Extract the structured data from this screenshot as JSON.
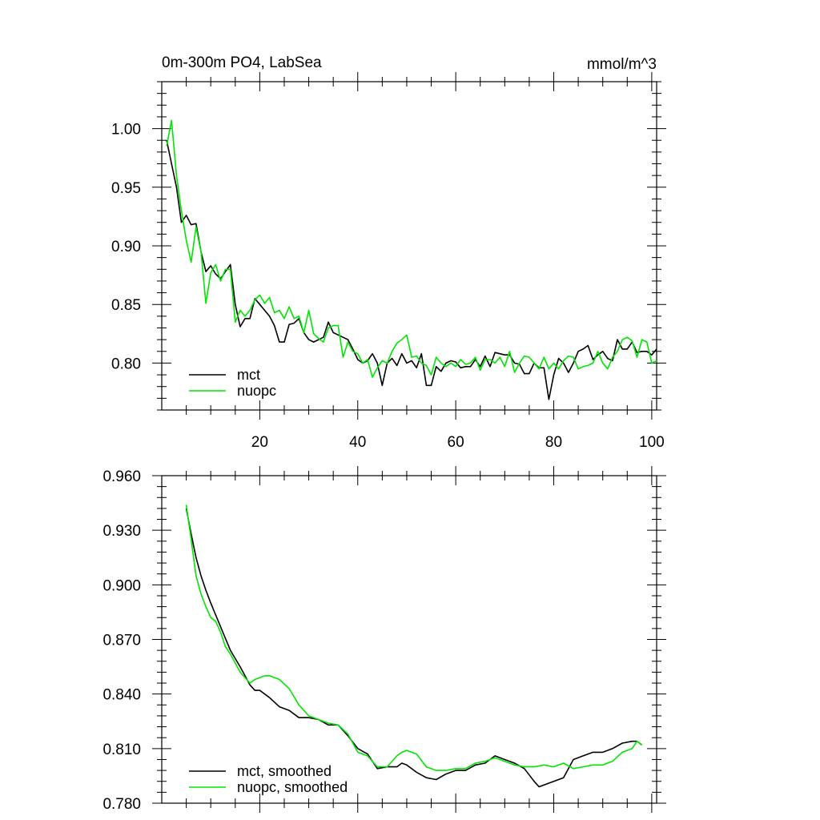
{
  "page": {
    "title_left": "0m-300m PO4, LabSea",
    "title_right": "mmol/m^3"
  },
  "colors": {
    "mct": "#000000",
    "nuopc": "#00e600",
    "axis": "#000000"
  },
  "chart_data": [
    {
      "type": "line",
      "title": "0m-300m PO4, LabSea",
      "units": "mmol/m^3",
      "xlim": [
        0,
        101
      ],
      "ylim": [
        0.76,
        1.04
      ],
      "xticks": [
        20,
        40,
        60,
        80,
        100
      ],
      "xtick_labels": [
        "20",
        "40",
        "60",
        "80",
        "100"
      ],
      "yticks": [
        0.8,
        0.85,
        0.9,
        0.95,
        1.0
      ],
      "ytick_labels": [
        "0.80",
        "0.85",
        "0.90",
        "0.95",
        "1.00"
      ],
      "legend_position": "bottom-left",
      "grid": false,
      "series": [
        {
          "name": "mct",
          "color": "#000000",
          "x": [
            1,
            2,
            3,
            4,
            5,
            6,
            7,
            8,
            9,
            10,
            11,
            12,
            13,
            14,
            15,
            16,
            17,
            18,
            19,
            20,
            21,
            22,
            23,
            24,
            25,
            26,
            27,
            28,
            29,
            30,
            31,
            32,
            33,
            34,
            35,
            36,
            37,
            38,
            39,
            40,
            41,
            42,
            43,
            44,
            45,
            46,
            47,
            48,
            49,
            50,
            51,
            52,
            53,
            54,
            55,
            56,
            57,
            58,
            59,
            60,
            61,
            62,
            63,
            64,
            65,
            66,
            67,
            68,
            69,
            70,
            71,
            72,
            73,
            74,
            75,
            76,
            77,
            78,
            79,
            80,
            81,
            82,
            83,
            84,
            85,
            86,
            87,
            88,
            89,
            90,
            91,
            92,
            93,
            94,
            95,
            96,
            97,
            98,
            99,
            100,
            101
          ],
          "values": [
            0.99,
            0.97,
            0.95,
            0.92,
            0.926,
            0.918,
            0.919,
            0.895,
            0.878,
            0.883,
            0.876,
            0.872,
            0.878,
            0.884,
            0.85,
            0.831,
            0.838,
            0.838,
            0.855,
            0.85,
            0.845,
            0.84,
            0.832,
            0.818,
            0.818,
            0.833,
            0.834,
            0.838,
            0.826,
            0.82,
            0.818,
            0.82,
            0.822,
            0.835,
            0.826,
            0.824,
            0.822,
            0.82,
            0.812,
            0.803,
            0.8,
            0.802,
            0.808,
            0.8,
            0.781,
            0.8,
            0.804,
            0.798,
            0.808,
            0.8,
            0.802,
            0.796,
            0.808,
            0.781,
            0.781,
            0.797,
            0.793,
            0.8,
            0.802,
            0.801,
            0.796,
            0.797,
            0.797,
            0.803,
            0.797,
            0.806,
            0.797,
            0.809,
            0.808,
            0.807,
            0.807,
            0.8,
            0.799,
            0.791,
            0.791,
            0.8,
            0.796,
            0.796,
            0.769,
            0.79,
            0.804,
            0.8,
            0.792,
            0.8,
            0.81,
            0.812,
            0.815,
            0.803,
            0.807,
            0.81,
            0.804,
            0.802,
            0.82,
            0.812,
            0.812,
            0.818,
            0.809,
            0.81,
            0.81,
            0.807,
            0.812
          ]
        },
        {
          "name": "nuopc",
          "color": "#00e600",
          "x": [
            1,
            2,
            3,
            4,
            5,
            6,
            7,
            8,
            9,
            10,
            11,
            12,
            13,
            14,
            15,
            16,
            17,
            18,
            19,
            20,
            21,
            22,
            23,
            24,
            25,
            26,
            27,
            28,
            29,
            30,
            31,
            32,
            33,
            34,
            35,
            36,
            37,
            38,
            39,
            40,
            41,
            42,
            43,
            44,
            45,
            46,
            47,
            48,
            49,
            50,
            51,
            52,
            53,
            54,
            55,
            56,
            57,
            58,
            59,
            60,
            61,
            62,
            63,
            64,
            65,
            66,
            67,
            68,
            69,
            70,
            71,
            72,
            73,
            74,
            75,
            76,
            77,
            78,
            79,
            80,
            81,
            82,
            83,
            84,
            85,
            86,
            87,
            88,
            89,
            90,
            91,
            92,
            93,
            94,
            95,
            96,
            97,
            98,
            99,
            100,
            101
          ],
          "values": [
            0.985,
            1.007,
            0.96,
            0.93,
            0.905,
            0.886,
            0.916,
            0.895,
            0.851,
            0.877,
            0.884,
            0.87,
            0.88,
            0.88,
            0.835,
            0.845,
            0.84,
            0.845,
            0.854,
            0.858,
            0.851,
            0.856,
            0.843,
            0.845,
            0.838,
            0.848,
            0.838,
            0.84,
            0.826,
            0.845,
            0.825,
            0.821,
            0.818,
            0.83,
            0.832,
            0.832,
            0.805,
            0.818,
            0.81,
            0.808,
            0.8,
            0.803,
            0.788,
            0.796,
            0.802,
            0.8,
            0.81,
            0.817,
            0.82,
            0.824,
            0.805,
            0.806,
            0.8,
            0.798,
            0.79,
            0.805,
            0.8,
            0.797,
            0.8,
            0.797,
            0.803,
            0.799,
            0.8,
            0.805,
            0.794,
            0.803,
            0.803,
            0.8,
            0.805,
            0.797,
            0.81,
            0.792,
            0.8,
            0.806,
            0.805,
            0.8,
            0.795,
            0.805,
            0.795,
            0.8,
            0.795,
            0.802,
            0.806,
            0.805,
            0.795,
            0.797,
            0.798,
            0.8,
            0.81,
            0.8,
            0.795,
            0.805,
            0.81,
            0.82,
            0.822,
            0.819,
            0.805,
            0.82,
            0.818,
            0.8,
            0.802
          ]
        }
      ]
    },
    {
      "type": "line",
      "xlim": [
        0,
        101
      ],
      "ylim": [
        0.78,
        0.96
      ],
      "xticks": [
        20,
        40,
        60,
        80,
        100
      ],
      "xtick_labels": [],
      "yticks": [
        0.78,
        0.81,
        0.84,
        0.87,
        0.9,
        0.93,
        0.96
      ],
      "ytick_labels": [
        "0.780",
        "0.810",
        "0.840",
        "0.870",
        "0.900",
        "0.930",
        "0.960"
      ],
      "legend_position": "bottom-left",
      "grid": false,
      "series": [
        {
          "name": "mct, smoothed",
          "color": "#000000",
          "x": [
            5,
            6,
            7,
            8,
            9,
            10,
            12,
            14,
            16,
            17,
            18,
            19,
            20,
            22,
            24,
            26,
            28,
            30,
            32,
            34,
            36,
            37,
            38,
            40,
            42,
            44,
            46,
            48,
            49,
            50,
            52,
            54,
            56,
            58,
            60,
            62,
            64,
            66,
            68,
            70,
            72,
            74,
            76,
            77,
            78,
            80,
            82,
            84,
            86,
            88,
            90,
            92,
            94,
            96,
            97,
            98
          ],
          "values": [
            0.942,
            0.928,
            0.915,
            0.905,
            0.897,
            0.89,
            0.877,
            0.864,
            0.855,
            0.85,
            0.845,
            0.842,
            0.842,
            0.838,
            0.833,
            0.831,
            0.827,
            0.827,
            0.826,
            0.823,
            0.823,
            0.82,
            0.817,
            0.81,
            0.807,
            0.799,
            0.8,
            0.8,
            0.802,
            0.801,
            0.797,
            0.794,
            0.793,
            0.796,
            0.798,
            0.798,
            0.801,
            0.802,
            0.806,
            0.804,
            0.802,
            0.799,
            0.792,
            0.789,
            0.79,
            0.792,
            0.794,
            0.804,
            0.806,
            0.808,
            0.808,
            0.81,
            0.813,
            0.814,
            0.814,
            0.812
          ]
        },
        {
          "name": "nuopc, smoothed",
          "color": "#00e600",
          "x": [
            5,
            6,
            7,
            8,
            9,
            10,
            11,
            12,
            13,
            14,
            15,
            16,
            17,
            18,
            19,
            20,
            21,
            22,
            24,
            26,
            28,
            30,
            32,
            34,
            36,
            38,
            40,
            42,
            44,
            46,
            48,
            49,
            50,
            52,
            54,
            56,
            58,
            60,
            62,
            64,
            66,
            68,
            70,
            72,
            74,
            76,
            78,
            80,
            82,
            84,
            86,
            88,
            90,
            92,
            94,
            96,
            97,
            98
          ],
          "values": [
            0.944,
            0.925,
            0.905,
            0.895,
            0.888,
            0.882,
            0.88,
            0.874,
            0.866,
            0.862,
            0.857,
            0.852,
            0.849,
            0.846,
            0.848,
            0.849,
            0.85,
            0.85,
            0.848,
            0.843,
            0.834,
            0.828,
            0.826,
            0.824,
            0.823,
            0.818,
            0.808,
            0.806,
            0.8,
            0.8,
            0.806,
            0.808,
            0.809,
            0.807,
            0.8,
            0.798,
            0.798,
            0.799,
            0.799,
            0.802,
            0.803,
            0.805,
            0.803,
            0.801,
            0.8,
            0.8,
            0.801,
            0.8,
            0.802,
            0.799,
            0.8,
            0.801,
            0.801,
            0.803,
            0.808,
            0.81,
            0.814,
            0.812
          ]
        }
      ]
    }
  ]
}
